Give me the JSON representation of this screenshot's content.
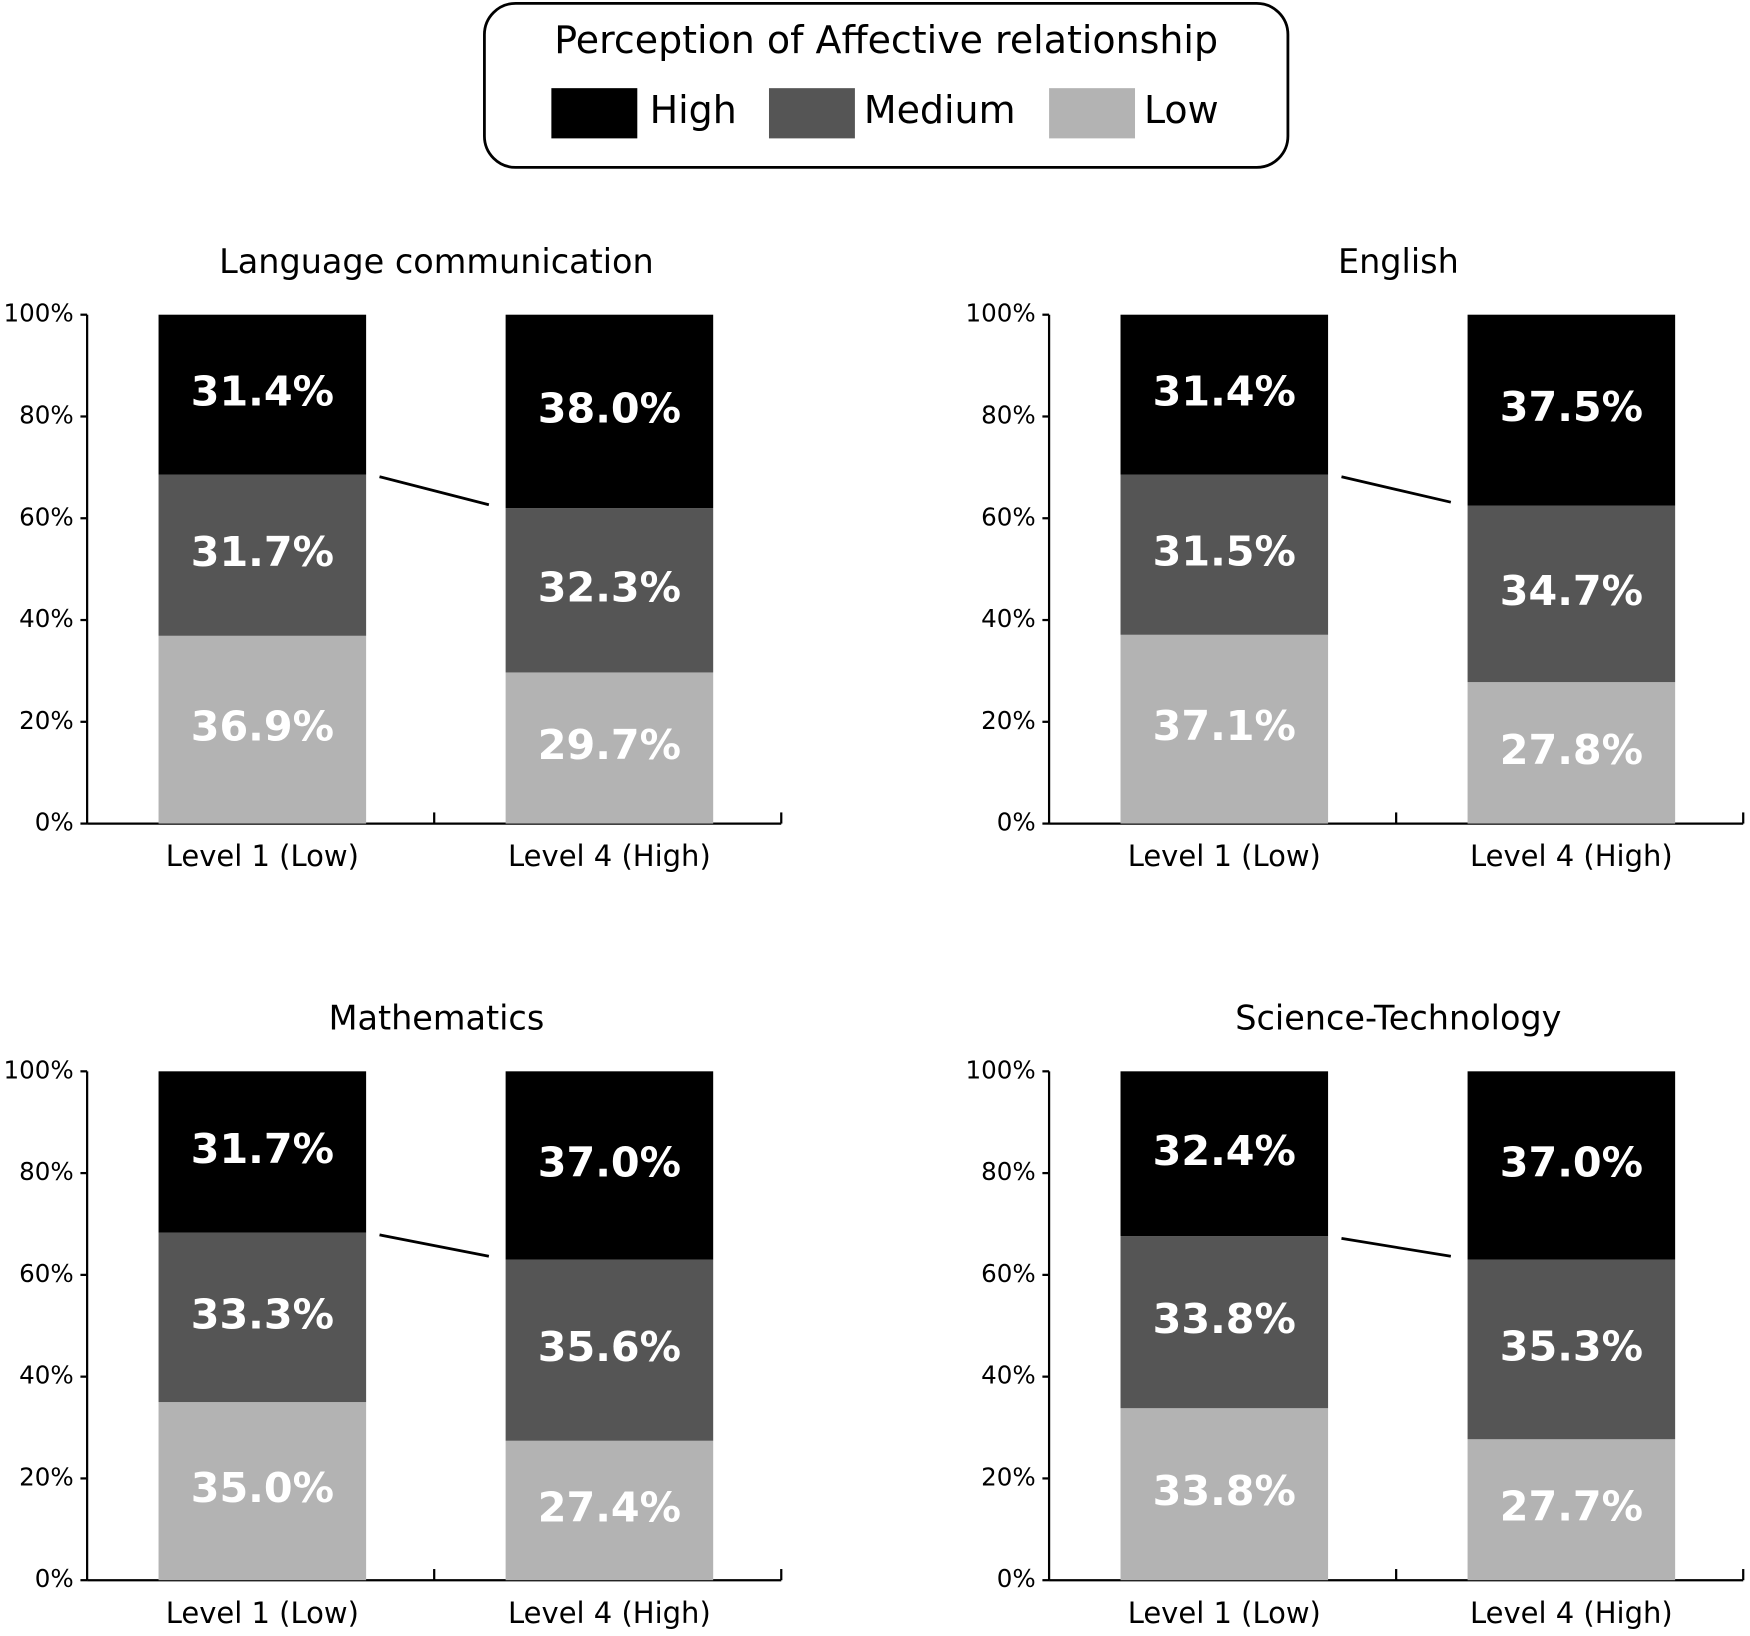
{
  "legend_title": "Perception of Affective relationship",
  "chart_data": [
    {
      "type": "bar",
      "stacked": true,
      "title": "Language communication",
      "categories": [
        "Level 1 (Low)",
        "Level 4 (High)"
      ],
      "series": [
        {
          "name": "Low",
          "color": "#b3b3b3",
          "values": [
            36.9,
            29.7
          ],
          "value_labels": [
            "36.9%",
            "29.7%"
          ]
        },
        {
          "name": "Medium",
          "color": "#555555",
          "values": [
            31.7,
            32.3
          ],
          "value_labels": [
            "31.7%",
            "32.3%"
          ]
        },
        {
          "name": "High",
          "color": "#000000",
          "values": [
            31.4,
            38.0
          ],
          "value_labels": [
            "31.4%",
            "38.0%"
          ]
        }
      ],
      "ylim": [
        0,
        100
      ],
      "yticks": [
        {
          "value": 0,
          "label": "0%"
        },
        {
          "value": 20,
          "label": "20%"
        },
        {
          "value": 40,
          "label": "40%"
        },
        {
          "value": 60,
          "label": "60%"
        },
        {
          "value": 80,
          "label": "80%"
        },
        {
          "value": 100,
          "label": "100%"
        }
      ]
    },
    {
      "type": "bar",
      "stacked": true,
      "title": "English",
      "categories": [
        "Level 1 (Low)",
        "Level 4 (High)"
      ],
      "series": [
        {
          "name": "Low",
          "color": "#b3b3b3",
          "values": [
            37.1,
            27.8
          ],
          "value_labels": [
            "37.1%",
            "27.8%"
          ]
        },
        {
          "name": "Medium",
          "color": "#555555",
          "values": [
            31.5,
            34.7
          ],
          "value_labels": [
            "31.5%",
            "34.7%"
          ]
        },
        {
          "name": "High",
          "color": "#000000",
          "values": [
            31.4,
            37.5
          ],
          "value_labels": [
            "31.4%",
            "37.5%"
          ]
        }
      ],
      "ylim": [
        0,
        100
      ],
      "yticks": [
        {
          "value": 0,
          "label": "0%"
        },
        {
          "value": 20,
          "label": "20%"
        },
        {
          "value": 40,
          "label": "40%"
        },
        {
          "value": 60,
          "label": "60%"
        },
        {
          "value": 80,
          "label": "80%"
        },
        {
          "value": 100,
          "label": "100%"
        }
      ]
    },
    {
      "type": "bar",
      "stacked": true,
      "title": "Mathematics",
      "categories": [
        "Level 1 (Low)",
        "Level 4 (High)"
      ],
      "series": [
        {
          "name": "Low",
          "color": "#b3b3b3",
          "values": [
            35.0,
            27.4
          ],
          "value_labels": [
            "35.0%",
            "27.4%"
          ]
        },
        {
          "name": "Medium",
          "color": "#555555",
          "values": [
            33.3,
            35.6
          ],
          "value_labels": [
            "33.3%",
            "35.6%"
          ]
        },
        {
          "name": "High",
          "color": "#000000",
          "values": [
            31.7,
            37.0
          ],
          "value_labels": [
            "31.7%",
            "37.0%"
          ]
        }
      ],
      "ylim": [
        0,
        100
      ],
      "yticks": [
        {
          "value": 0,
          "label": "0%"
        },
        {
          "value": 20,
          "label": "20%"
        },
        {
          "value": 40,
          "label": "40%"
        },
        {
          "value": 60,
          "label": "60%"
        },
        {
          "value": 80,
          "label": "80%"
        },
        {
          "value": 100,
          "label": "100%"
        }
      ]
    },
    {
      "type": "bar",
      "stacked": true,
      "title": "Science-Technology",
      "categories": [
        "Level 1 (Low)",
        "Level 4 (High)"
      ],
      "series": [
        {
          "name": "Low",
          "color": "#b3b3b3",
          "values": [
            33.8,
            27.7
          ],
          "value_labels": [
            "33.8%",
            "27.7%"
          ]
        },
        {
          "name": "Medium",
          "color": "#555555",
          "values": [
            33.8,
            35.3
          ],
          "value_labels": [
            "33.8%",
            "35.3%"
          ]
        },
        {
          "name": "High",
          "color": "#000000",
          "values": [
            32.4,
            37.0
          ],
          "value_labels": [
            "32.4%",
            "37.0%"
          ]
        }
      ],
      "ylim": [
        0,
        100
      ],
      "yticks": [
        {
          "value": 0,
          "label": "0%"
        },
        {
          "value": 20,
          "label": "20%"
        },
        {
          "value": 40,
          "label": "40%"
        },
        {
          "value": 60,
          "label": "60%"
        },
        {
          "value": 80,
          "label": "80%"
        },
        {
          "value": 100,
          "label": "100%"
        }
      ]
    }
  ]
}
